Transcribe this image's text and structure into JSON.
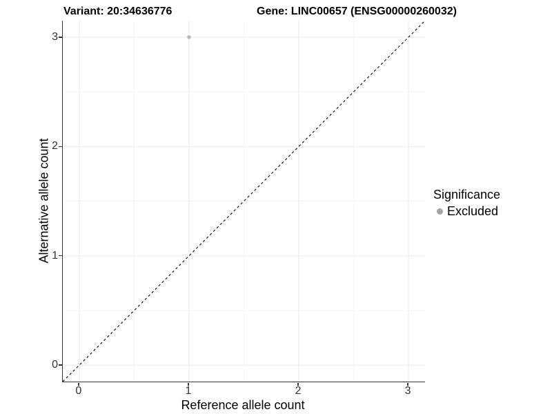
{
  "titles": {
    "variant": "Variant: 20:34636776",
    "gene": "Gene: LINC00657 (ENSG00000260032)"
  },
  "axes": {
    "x_label": "Reference allele count",
    "y_label": "Alternative allele count"
  },
  "legend": {
    "title": "Significance",
    "position": "right",
    "items": [
      {
        "label": "Excluded",
        "marker": "dot-icon",
        "color": "#a3a3a3"
      }
    ]
  },
  "colors": {
    "background": "#ffffff",
    "axis_line": "#333333",
    "grid_major": "#ebebeb",
    "grid_minor": "#f4f4f4",
    "tick_label": "#303030",
    "reference_line": "#000000",
    "point_excluded": "#b9b9b9"
  },
  "chart_data": {
    "type": "scatter",
    "title": "Variant: 20:34636776 | Gene: LINC00657 (ENSG00000260032)",
    "xlabel": "Reference allele count",
    "ylabel": "Alternative allele count",
    "xlim": [
      -0.15,
      3.15
    ],
    "ylim": [
      -0.15,
      3.15
    ],
    "x_ticks": [
      0,
      1,
      2,
      3
    ],
    "y_ticks": [
      0,
      1,
      2,
      3
    ],
    "x_minor_ticks": [
      0.5,
      1.5,
      2.5
    ],
    "y_minor_ticks": [
      0.5,
      1.5,
      2.5
    ],
    "grid": true,
    "legend_position": "right",
    "series": [
      {
        "name": "Excluded",
        "color": "#b9b9b9",
        "points": [
          {
            "x": 1,
            "y": 3
          }
        ]
      }
    ],
    "reference_line": {
      "type": "abline",
      "slope": 1,
      "intercept": 0,
      "style": "dashed",
      "color": "#000000"
    }
  }
}
